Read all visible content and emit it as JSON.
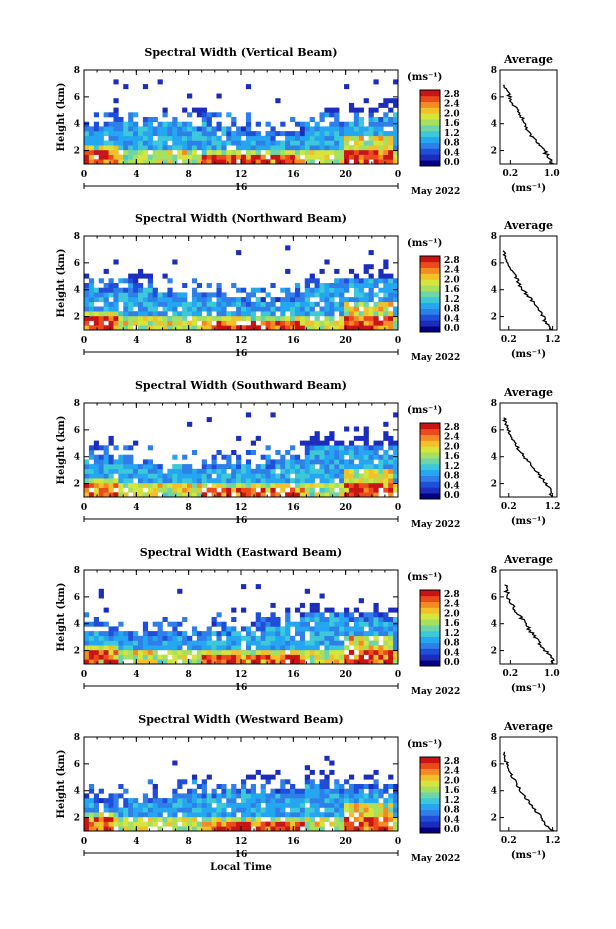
{
  "figure": {
    "colorbar_ticks": [
      "2.8",
      "2.4",
      "2.0",
      "1.6",
      "1.2",
      "0.8",
      "0.4",
      "0.0"
    ],
    "colorbar_unit": "(ms⁻¹)",
    "colors": [
      "#000080",
      "#1c2dbb",
      "#1f4fd8",
      "#2f7fe8",
      "#24a6f0",
      "#3cc8d8",
      "#6ed5a8",
      "#a6e05e",
      "#d7e43c",
      "#f2c12a",
      "#f48b22",
      "#ec4a1c",
      "#c81414"
    ]
  },
  "chart_data": [
    {
      "type": "heatmap",
      "title": "Spectral Width (Vertical Beam)",
      "xlabel": "",
      "ylabel": "Height (km)",
      "x_ticks": [
        "0",
        "4",
        "8",
        "12",
        "16",
        "20",
        "0"
      ],
      "y_ticks": [
        "2",
        "4",
        "6",
        "8"
      ],
      "date_day": "16",
      "date_label": "May 2022",
      "xlim": [
        0,
        24
      ],
      "ylim": [
        1,
        8
      ],
      "zlim": [
        0,
        2.8
      ],
      "colorbar_ticks": [
        "2.8",
        "2.4",
        "2.0",
        "1.6",
        "1.2",
        "0.8",
        "0.4",
        "0.0"
      ],
      "colorbar_unit": "(ms⁻¹)",
      "profile": {
        "title": "Average",
        "x_ticks": [
          "0.2",
          "1.0"
        ],
        "y_ticks": [
          "2",
          "4",
          "6",
          "8"
        ],
        "xlabel": "(ms⁻¹)",
        "xlim": [
          0,
          1.1
        ],
        "height": [
          1.0,
          1.5,
          2.0,
          2.5,
          3.0,
          3.5,
          4.0,
          4.5,
          5.0,
          5.5,
          6.0,
          6.5,
          7.0
        ],
        "value": [
          1.02,
          0.93,
          0.85,
          0.72,
          0.62,
          0.55,
          0.48,
          0.42,
          0.32,
          0.25,
          0.18,
          0.12,
          0.1
        ]
      }
    },
    {
      "type": "heatmap",
      "title": "Spectral Width (Northward Beam)",
      "xlabel": "",
      "ylabel": "Height (km)",
      "x_ticks": [
        "0",
        "4",
        "8",
        "12",
        "16",
        "20",
        "0"
      ],
      "y_ticks": [
        "2",
        "4",
        "6",
        "8"
      ],
      "date_day": "16",
      "date_label": "May 2022",
      "xlim": [
        0,
        24
      ],
      "ylim": [
        1,
        8
      ],
      "zlim": [
        0,
        2.8
      ],
      "colorbar_ticks": [
        "2.8",
        "2.4",
        "2.0",
        "1.6",
        "1.2",
        "0.8",
        "0.4",
        "0.0"
      ],
      "colorbar_unit": "(ms⁻¹)",
      "profile": {
        "title": "Average",
        "x_ticks": [
          "0.2",
          "1.2"
        ],
        "y_ticks": [
          "2",
          "4",
          "6",
          "8"
        ],
        "xlabel": "(ms⁻¹)",
        "xlim": [
          0,
          1.3
        ],
        "height": [
          1.0,
          1.5,
          2.0,
          2.5,
          3.0,
          3.5,
          4.0,
          4.5,
          5.0,
          5.5,
          6.0,
          6.5,
          7.0
        ],
        "value": [
          1.2,
          1.05,
          0.98,
          0.9,
          0.78,
          0.65,
          0.52,
          0.42,
          0.35,
          0.25,
          0.18,
          0.12,
          0.1
        ]
      }
    },
    {
      "type": "heatmap",
      "title": "Spectral Width (Southward Beam)",
      "xlabel": "",
      "ylabel": "Height (km)",
      "x_ticks": [
        "0",
        "4",
        "8",
        "12",
        "16",
        "20",
        "0"
      ],
      "y_ticks": [
        "2",
        "4",
        "6",
        "8"
      ],
      "date_day": "16",
      "date_label": "May 2022",
      "xlim": [
        0,
        24
      ],
      "ylim": [
        1,
        8
      ],
      "zlim": [
        0,
        2.8
      ],
      "colorbar_ticks": [
        "2.8",
        "2.4",
        "2.0",
        "1.6",
        "1.2",
        "0.8",
        "0.4",
        "0.0"
      ],
      "colorbar_unit": "(ms⁻¹)",
      "profile": {
        "title": "Average",
        "x_ticks": [
          "0.2",
          "1.2"
        ],
        "y_ticks": [
          "2",
          "4",
          "6",
          "8"
        ],
        "xlabel": "(ms⁻¹)",
        "xlim": [
          0,
          1.3
        ],
        "height": [
          1.0,
          1.5,
          2.0,
          2.5,
          3.0,
          3.5,
          4.0,
          4.5,
          5.0,
          5.5,
          6.0,
          6.5,
          7.0
        ],
        "value": [
          1.15,
          1.2,
          1.05,
          0.92,
          0.8,
          0.68,
          0.55,
          0.44,
          0.35,
          0.26,
          0.18,
          0.12,
          0.1
        ]
      }
    },
    {
      "type": "heatmap",
      "title": "Spectral Width (Eastward Beam)",
      "xlabel": "",
      "ylabel": "Height (km)",
      "x_ticks": [
        "0",
        "4",
        "8",
        "12",
        "16",
        "20",
        "0"
      ],
      "y_ticks": [
        "2",
        "4",
        "6",
        "8"
      ],
      "date_day": "16",
      "date_label": "May 2022",
      "xlim": [
        0,
        24
      ],
      "ylim": [
        1,
        8
      ],
      "zlim": [
        0,
        2.8
      ],
      "colorbar_ticks": [
        "2.8",
        "2.4",
        "2.0",
        "1.6",
        "1.2",
        "0.8",
        "0.4",
        "0.0"
      ],
      "colorbar_unit": "(ms⁻¹)",
      "profile": {
        "title": "Average",
        "x_ticks": [
          "0.2",
          "1.0"
        ],
        "y_ticks": [
          "2",
          "4",
          "6",
          "8"
        ],
        "xlabel": "(ms⁻¹)",
        "xlim": [
          0,
          1.1
        ],
        "height": [
          1.0,
          1.5,
          2.0,
          2.5,
          3.0,
          3.5,
          4.0,
          4.5,
          5.0,
          5.5,
          6.0,
          6.5,
          7.0
        ],
        "value": [
          1.05,
          0.98,
          0.88,
          0.78,
          0.68,
          0.58,
          0.48,
          0.4,
          0.3,
          0.22,
          0.16,
          0.12,
          0.1
        ]
      }
    },
    {
      "type": "heatmap",
      "title": "Spectral Width (Westward Beam)",
      "xlabel": "Local Time",
      "ylabel": "Height (km)",
      "x_ticks": [
        "0",
        "4",
        "8",
        "12",
        "16",
        "20",
        "0"
      ],
      "y_ticks": [
        "2",
        "4",
        "6",
        "8"
      ],
      "date_day": "16",
      "date_label": "May 2022",
      "xlim": [
        0,
        24
      ],
      "ylim": [
        1,
        8
      ],
      "zlim": [
        0,
        2.8
      ],
      "colorbar_ticks": [
        "2.8",
        "2.4",
        "2.0",
        "1.6",
        "1.2",
        "0.8",
        "0.4",
        "0.0"
      ],
      "colorbar_unit": "(ms⁻¹)",
      "profile": {
        "title": "Average",
        "x_ticks": [
          "0.2",
          "1.2"
        ],
        "y_ticks": [
          "2",
          "4",
          "6",
          "8"
        ],
        "xlabel": "(ms⁻¹)",
        "xlim": [
          0,
          1.3
        ],
        "height": [
          1.0,
          1.5,
          2.0,
          2.5,
          3.0,
          3.5,
          4.0,
          4.5,
          5.0,
          5.5,
          6.0,
          6.5,
          7.0
        ],
        "value": [
          1.2,
          1.05,
          0.95,
          0.82,
          0.7,
          0.58,
          0.47,
          0.38,
          0.3,
          0.22,
          0.16,
          0.11,
          0.1
        ]
      }
    }
  ]
}
